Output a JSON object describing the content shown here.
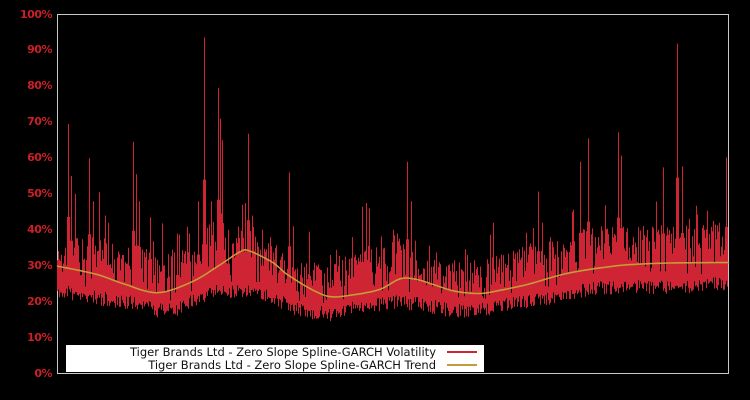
{
  "window": {
    "background": "#000000"
  },
  "plot": {
    "border_color": "#c9c9c9"
  },
  "axes": {
    "y": {
      "label_color": "#cc1f28",
      "ticks": [
        {
          "v": 0,
          "label": "0%"
        },
        {
          "v": 10,
          "label": "10%"
        },
        {
          "v": 20,
          "label": "20%"
        },
        {
          "v": 30,
          "label": "30%"
        },
        {
          "v": 40,
          "label": "40%"
        },
        {
          "v": 50,
          "label": "50%"
        },
        {
          "v": 60,
          "label": "60%"
        },
        {
          "v": 70,
          "label": "70%"
        },
        {
          "v": 80,
          "label": "80%"
        },
        {
          "v": 90,
          "label": "90%"
        },
        {
          "v": 100,
          "label": "100%"
        }
      ]
    },
    "x": {
      "labels_visible": false
    }
  },
  "legend": {
    "background": "#ffffff",
    "items": [
      {
        "label": "Tiger Brands Ltd - Zero Slope Spline-GARCH Volatility",
        "color": "#cf2433"
      },
      {
        "label": "Tiger Brands Ltd - Zero Slope Spline-GARCH Trend",
        "color": "#c49b3a"
      }
    ]
  },
  "chart_data": {
    "type": "line",
    "title": "",
    "xlabel": "",
    "ylabel": "",
    "ylim": [
      0,
      100
    ],
    "yticks": [
      "0%",
      "10%",
      "20%",
      "30%",
      "40%",
      "50%",
      "60%",
      "70%",
      "80%",
      "90%",
      "100%"
    ],
    "grid": false,
    "background": "#000000",
    "legend_position": "inside-bottom-left",
    "x_unit": "fraction-of-plot-width",
    "y_unit": "percent",
    "series": [
      {
        "name": "Tiger Brands Ltd - Zero Slope Spline-GARCH Volatility",
        "render": "dense-vertical-spikes",
        "color": "#cf2433",
        "noise_seed": 11,
        "envelope": [
          {
            "x": 0.0,
            "low": 23,
            "high": 33
          },
          {
            "x": 0.03,
            "low": 22,
            "high": 36
          },
          {
            "x": 0.06,
            "low": 21,
            "high": 36
          },
          {
            "x": 0.1,
            "low": 20,
            "high": 33
          },
          {
            "x": 0.13,
            "low": 19,
            "high": 34
          },
          {
            "x": 0.15,
            "low": 17.5,
            "high": 30
          },
          {
            "x": 0.18,
            "low": 18,
            "high": 34
          },
          {
            "x": 0.21,
            "low": 21,
            "high": 38
          },
          {
            "x": 0.24,
            "low": 23,
            "high": 42
          },
          {
            "x": 0.26,
            "low": 23,
            "high": 36
          },
          {
            "x": 0.29,
            "low": 23,
            "high": 40
          },
          {
            "x": 0.32,
            "low": 21,
            "high": 34
          },
          {
            "x": 0.36,
            "low": 17.5,
            "high": 29
          },
          {
            "x": 0.41,
            "low": 16.5,
            "high": 28
          },
          {
            "x": 0.44,
            "low": 18,
            "high": 32
          },
          {
            "x": 0.47,
            "low": 19,
            "high": 34
          },
          {
            "x": 0.51,
            "low": 20,
            "high": 36
          },
          {
            "x": 0.55,
            "low": 19,
            "high": 30
          },
          {
            "x": 0.59,
            "low": 17.5,
            "high": 29
          },
          {
            "x": 0.63,
            "low": 17.5,
            "high": 30
          },
          {
            "x": 0.66,
            "low": 19,
            "high": 31
          },
          {
            "x": 0.7,
            "low": 20,
            "high": 34
          },
          {
            "x": 0.74,
            "low": 21,
            "high": 36
          },
          {
            "x": 0.78,
            "low": 23,
            "high": 38
          },
          {
            "x": 0.82,
            "low": 24,
            "high": 40
          },
          {
            "x": 0.86,
            "low": 24,
            "high": 39
          },
          {
            "x": 0.9,
            "low": 24,
            "high": 40
          },
          {
            "x": 0.94,
            "low": 24,
            "high": 40
          },
          {
            "x": 0.97,
            "low": 25,
            "high": 41
          },
          {
            "x": 1.0,
            "low": 25,
            "high": 40
          }
        ],
        "spikes": [
          {
            "x": 0.016,
            "v": 69.5
          },
          {
            "x": 0.021,
            "v": 55
          },
          {
            "x": 0.027,
            "v": 50
          },
          {
            "x": 0.048,
            "v": 60
          },
          {
            "x": 0.054,
            "v": 48
          },
          {
            "x": 0.063,
            "v": 50.5
          },
          {
            "x": 0.072,
            "v": 44
          },
          {
            "x": 0.076,
            "v": 42
          },
          {
            "x": 0.113,
            "v": 64.5
          },
          {
            "x": 0.118,
            "v": 55.5
          },
          {
            "x": 0.122,
            "v": 48
          },
          {
            "x": 0.139,
            "v": 43.5
          },
          {
            "x": 0.157,
            "v": 41.8
          },
          {
            "x": 0.179,
            "v": 39
          },
          {
            "x": 0.197,
            "v": 39
          },
          {
            "x": 0.21,
            "v": 48
          },
          {
            "x": 0.219,
            "v": 93.6
          },
          {
            "x": 0.23,
            "v": 48
          },
          {
            "x": 0.24,
            "v": 79.5
          },
          {
            "x": 0.243,
            "v": 71
          },
          {
            "x": 0.246,
            "v": 65
          },
          {
            "x": 0.255,
            "v": 40
          },
          {
            "x": 0.276,
            "v": 47
          },
          {
            "x": 0.28,
            "v": 47.5
          },
          {
            "x": 0.285,
            "v": 66.8
          },
          {
            "x": 0.291,
            "v": 44
          },
          {
            "x": 0.306,
            "v": 40
          },
          {
            "x": 0.318,
            "v": 38
          },
          {
            "x": 0.347,
            "v": 56
          },
          {
            "x": 0.352,
            "v": 41
          },
          {
            "x": 0.376,
            "v": 39.5
          },
          {
            "x": 0.407,
            "v": 33
          },
          {
            "x": 0.44,
            "v": 38
          },
          {
            "x": 0.455,
            "v": 46.5
          },
          {
            "x": 0.461,
            "v": 47.5
          },
          {
            "x": 0.465,
            "v": 46
          },
          {
            "x": 0.502,
            "v": 40
          },
          {
            "x": 0.507,
            "v": 39
          },
          {
            "x": 0.523,
            "v": 59
          },
          {
            "x": 0.528,
            "v": 48
          },
          {
            "x": 0.534,
            "v": 37
          },
          {
            "x": 0.566,
            "v": 33.7
          },
          {
            "x": 0.593,
            "v": 31.5
          },
          {
            "x": 0.65,
            "v": 42
          },
          {
            "x": 0.66,
            "v": 31.5
          },
          {
            "x": 0.683,
            "v": 33.4
          },
          {
            "x": 0.7,
            "v": 39.2
          },
          {
            "x": 0.718,
            "v": 50.7
          },
          {
            "x": 0.724,
            "v": 42
          },
          {
            "x": 0.736,
            "v": 38
          },
          {
            "x": 0.757,
            "v": 35
          },
          {
            "x": 0.768,
            "v": 45
          },
          {
            "x": 0.781,
            "v": 59
          },
          {
            "x": 0.793,
            "v": 65.5
          },
          {
            "x": 0.803,
            "v": 38
          },
          {
            "x": 0.814,
            "v": 39.8
          },
          {
            "x": 0.829,
            "v": 40.7
          },
          {
            "x": 0.838,
            "v": 67.2
          },
          {
            "x": 0.842,
            "v": 60.7
          },
          {
            "x": 0.851,
            "v": 36.2
          },
          {
            "x": 0.87,
            "v": 38
          },
          {
            "x": 0.881,
            "v": 40
          },
          {
            "x": 0.894,
            "v": 47.9
          },
          {
            "x": 0.905,
            "v": 57.4
          },
          {
            "x": 0.914,
            "v": 40
          },
          {
            "x": 0.926,
            "v": 91.9
          },
          {
            "x": 0.933,
            "v": 57.7
          },
          {
            "x": 0.943,
            "v": 43
          },
          {
            "x": 0.955,
            "v": 44.3
          },
          {
            "x": 0.966,
            "v": 40
          },
          {
            "x": 0.978,
            "v": 39.6
          },
          {
            "x": 0.988,
            "v": 42
          },
          {
            "x": 0.999,
            "v": 60.2
          }
        ]
      },
      {
        "name": "Tiger Brands Ltd - Zero Slope Spline-GARCH Trend",
        "render": "smooth-line",
        "color": "#c49b3a",
        "points": [
          {
            "x": 0.0,
            "v": 29.9
          },
          {
            "x": 0.035,
            "v": 28.6
          },
          {
            "x": 0.064,
            "v": 27.3
          },
          {
            "x": 0.1,
            "v": 24.9
          },
          {
            "x": 0.149,
            "v": 22.5
          },
          {
            "x": 0.2,
            "v": 25.5
          },
          {
            "x": 0.24,
            "v": 30.0
          },
          {
            "x": 0.271,
            "v": 33.8
          },
          {
            "x": 0.285,
            "v": 34.2
          },
          {
            "x": 0.32,
            "v": 31.0
          },
          {
            "x": 0.343,
            "v": 27.5
          },
          {
            "x": 0.38,
            "v": 23.3
          },
          {
            "x": 0.407,
            "v": 21.4
          },
          {
            "x": 0.44,
            "v": 21.9
          },
          {
            "x": 0.48,
            "v": 23.4
          },
          {
            "x": 0.511,
            "v": 26.4
          },
          {
            "x": 0.535,
            "v": 26.2
          },
          {
            "x": 0.56,
            "v": 24.8
          },
          {
            "x": 0.593,
            "v": 22.9
          },
          {
            "x": 0.63,
            "v": 22.3
          },
          {
            "x": 0.66,
            "v": 23.2
          },
          {
            "x": 0.7,
            "v": 24.8
          },
          {
            "x": 0.76,
            "v": 27.9
          },
          {
            "x": 0.82,
            "v": 29.7
          },
          {
            "x": 0.86,
            "v": 30.4
          },
          {
            "x": 0.92,
            "v": 30.8
          },
          {
            "x": 1.0,
            "v": 30.9
          }
        ]
      }
    ]
  }
}
